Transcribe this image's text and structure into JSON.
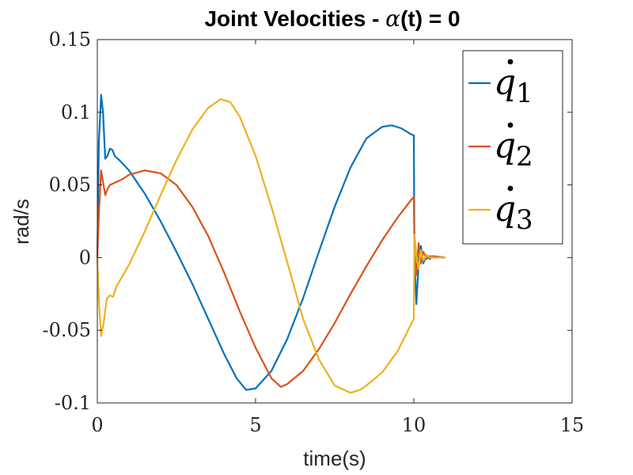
{
  "chart_data": {
    "type": "line",
    "title_parts": [
      "Joint Velocities - ",
      "α",
      "(t) = 0"
    ],
    "xlabel": "time(s)",
    "ylabel": "rad/s",
    "xlim": [
      0,
      15
    ],
    "ylim": [
      -0.1,
      0.15
    ],
    "xticks": [
      0,
      5,
      10,
      15
    ],
    "xtick_labels": [
      "0",
      "5",
      "10",
      "15"
    ],
    "yticks": [
      -0.1,
      -0.05,
      0,
      0.05,
      0.1,
      0.15
    ],
    "ytick_labels": [
      "-0.1",
      "-0.05",
      "0",
      "0.05",
      "0.1",
      "0.15"
    ],
    "grid": false,
    "legend_position": "top-right",
    "series": [
      {
        "name": "q̇1",
        "legend_base": "q",
        "legend_sub": "1",
        "color": "#0072BD",
        "points": [
          [
            0,
            0
          ],
          [
            0.05,
            0.08
          ],
          [
            0.12,
            0.112
          ],
          [
            0.18,
            0.1
          ],
          [
            0.25,
            0.068
          ],
          [
            0.32,
            0.07
          ],
          [
            0.4,
            0.075
          ],
          [
            0.48,
            0.074
          ],
          [
            0.55,
            0.07
          ],
          [
            0.7,
            0.067
          ],
          [
            1.0,
            0.06
          ],
          [
            1.5,
            0.044
          ],
          [
            2.0,
            0.025
          ],
          [
            2.5,
            0.004
          ],
          [
            3.0,
            -0.018
          ],
          [
            3.5,
            -0.042
          ],
          [
            4.0,
            -0.066
          ],
          [
            4.4,
            -0.083
          ],
          [
            4.7,
            -0.091
          ],
          [
            5.0,
            -0.09
          ],
          [
            5.5,
            -0.078
          ],
          [
            6.0,
            -0.056
          ],
          [
            6.5,
            -0.028
          ],
          [
            7.0,
            0.004
          ],
          [
            7.5,
            0.035
          ],
          [
            8.0,
            0.062
          ],
          [
            8.5,
            0.082
          ],
          [
            9.0,
            0.09
          ],
          [
            9.3,
            0.091
          ],
          [
            9.6,
            0.089
          ],
          [
            9.9,
            0.085
          ],
          [
            10.0,
            0.084
          ],
          [
            10.02,
            0.0
          ],
          [
            10.08,
            -0.032
          ],
          [
            10.15,
            -0.005
          ],
          [
            10.22,
            0.008
          ],
          [
            10.3,
            -0.004
          ],
          [
            10.4,
            0.002
          ],
          [
            10.5,
            -0.001
          ],
          [
            10.6,
            0.001
          ],
          [
            11.0,
            0.0
          ]
        ]
      },
      {
        "name": "q̇2",
        "legend_base": "q",
        "legend_sub": "2",
        "color": "#D95319",
        "points": [
          [
            0,
            0
          ],
          [
            0.05,
            0.03
          ],
          [
            0.12,
            0.06
          ],
          [
            0.18,
            0.052
          ],
          [
            0.25,
            0.043
          ],
          [
            0.32,
            0.047
          ],
          [
            0.4,
            0.05
          ],
          [
            0.6,
            0.052
          ],
          [
            0.8,
            0.054
          ],
          [
            1.0,
            0.057
          ],
          [
            1.5,
            0.06
          ],
          [
            2.0,
            0.058
          ],
          [
            2.5,
            0.05
          ],
          [
            3.0,
            0.035
          ],
          [
            3.5,
            0.015
          ],
          [
            4.0,
            -0.01
          ],
          [
            4.5,
            -0.037
          ],
          [
            5.0,
            -0.062
          ],
          [
            5.5,
            -0.083
          ],
          [
            5.8,
            -0.089
          ],
          [
            6.0,
            -0.087
          ],
          [
            6.5,
            -0.078
          ],
          [
            7.0,
            -0.063
          ],
          [
            7.5,
            -0.045
          ],
          [
            8.0,
            -0.025
          ],
          [
            8.5,
            -0.006
          ],
          [
            9.0,
            0.012
          ],
          [
            9.5,
            0.028
          ],
          [
            10.0,
            0.042
          ],
          [
            10.02,
            0.005
          ],
          [
            10.08,
            -0.012
          ],
          [
            10.15,
            0.01
          ],
          [
            10.22,
            -0.004
          ],
          [
            10.3,
            0.004
          ],
          [
            10.4,
            -0.001
          ],
          [
            10.5,
            0.001
          ],
          [
            11.0,
            0.0
          ]
        ]
      },
      {
        "name": "q̇3",
        "legend_base": "q",
        "legend_sub": "3",
        "color": "#EDB120",
        "points": [
          [
            0,
            0
          ],
          [
            0.05,
            -0.03
          ],
          [
            0.12,
            -0.054
          ],
          [
            0.2,
            -0.045
          ],
          [
            0.3,
            -0.028
          ],
          [
            0.4,
            -0.026
          ],
          [
            0.5,
            -0.027
          ],
          [
            0.6,
            -0.02
          ],
          [
            1.0,
            -0.005
          ],
          [
            1.5,
            0.018
          ],
          [
            2.0,
            0.043
          ],
          [
            2.5,
            0.067
          ],
          [
            3.0,
            0.088
          ],
          [
            3.5,
            0.103
          ],
          [
            3.9,
            0.109
          ],
          [
            4.2,
            0.107
          ],
          [
            4.5,
            0.097
          ],
          [
            5.0,
            0.07
          ],
          [
            5.5,
            0.035
          ],
          [
            6.0,
            -0.003
          ],
          [
            6.5,
            -0.042
          ],
          [
            7.0,
            -0.07
          ],
          [
            7.5,
            -0.088
          ],
          [
            8.0,
            -0.093
          ],
          [
            8.3,
            -0.091
          ],
          [
            8.5,
            -0.088
          ],
          [
            9.0,
            -0.079
          ],
          [
            9.5,
            -0.064
          ],
          [
            10.0,
            -0.042
          ],
          [
            10.02,
            0.016
          ],
          [
            10.08,
            0.001
          ],
          [
            10.15,
            -0.008
          ],
          [
            10.22,
            0.005
          ],
          [
            10.3,
            -0.002
          ],
          [
            10.4,
            0.002
          ],
          [
            10.5,
            0.0
          ],
          [
            11.0,
            0.0
          ]
        ]
      }
    ]
  }
}
